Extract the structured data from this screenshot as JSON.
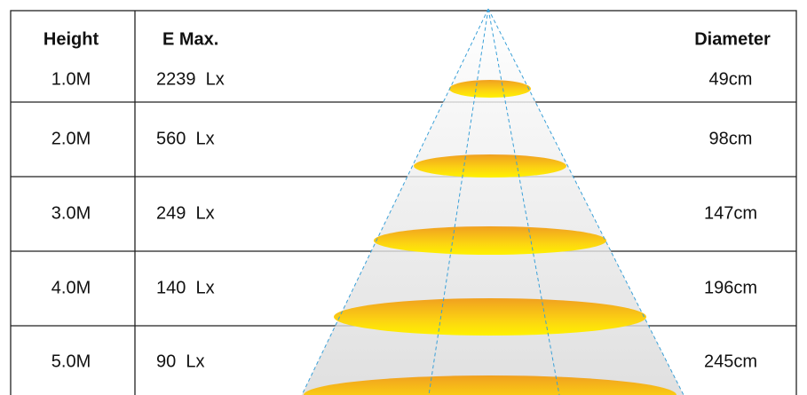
{
  "table": {
    "header": [
      "Height",
      "E Max.",
      "Diameter"
    ],
    "rows": [
      [
        "1.0M",
        "2239  Lx",
        "49cm"
      ],
      [
        "2.0M",
        "560  Lx",
        "98cm"
      ],
      [
        "3.0M",
        "249  Lx",
        "147cm"
      ],
      [
        "4.0M",
        "140  Lx",
        "196cm"
      ],
      [
        "5.0M",
        "90  Lx",
        "245cm"
      ]
    ]
  }
}
